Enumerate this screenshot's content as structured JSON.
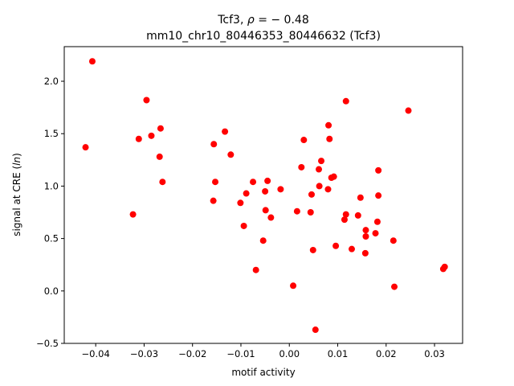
{
  "chart_data": {
    "type": "scatter",
    "title_line1": "Tcf3, ρ = − 0.48",
    "title_line2": "mm10_chr10_80446353_80446632 (Tcf3)",
    "xlabel": "motif activity",
    "ylabel": "signal at CRE (ln)",
    "xlim": [
      -0.0465,
      0.0358
    ],
    "ylim": [
      -0.5,
      2.33
    ],
    "xticks": [
      -0.04,
      -0.03,
      -0.02,
      -0.01,
      0.0,
      0.01,
      0.02,
      0.03
    ],
    "xtick_labels": [
      "−0.04",
      "−0.03",
      "−0.02",
      "−0.01",
      "0.00",
      "0.01",
      "0.02",
      "0.03"
    ],
    "yticks": [
      -0.5,
      0.0,
      0.5,
      1.0,
      1.5,
      2.0
    ],
    "ytick_labels": [
      "−0.5",
      "0.0",
      "0.5",
      "1.0",
      "1.5",
      "2.0"
    ],
    "grid": false,
    "marker_color": "#ff0000",
    "points": [
      [
        -0.0421,
        1.37
      ],
      [
        -0.0407,
        2.19
      ],
      [
        -0.0323,
        0.73
      ],
      [
        -0.0311,
        1.45
      ],
      [
        -0.0295,
        1.82
      ],
      [
        -0.0285,
        1.48
      ],
      [
        -0.0268,
        1.28
      ],
      [
        -0.0266,
        1.55
      ],
      [
        -0.0262,
        1.04
      ],
      [
        -0.0157,
        0.86
      ],
      [
        -0.0156,
        1.4
      ],
      [
        -0.0153,
        1.04
      ],
      [
        -0.0133,
        1.52
      ],
      [
        -0.0121,
        1.3
      ],
      [
        -0.0101,
        0.84
      ],
      [
        -0.0094,
        0.62
      ],
      [
        -0.0089,
        0.93
      ],
      [
        -0.0075,
        1.04
      ],
      [
        -0.0069,
        0.2
      ],
      [
        -0.0054,
        0.48
      ],
      [
        -0.005,
        0.95
      ],
      [
        -0.0049,
        0.77
      ],
      [
        -0.0045,
        1.05
      ],
      [
        -0.0038,
        0.7
      ],
      [
        -0.0018,
        0.97
      ],
      [
        0.0008,
        0.05
      ],
      [
        0.0016,
        0.76
      ],
      [
        0.0025,
        1.18
      ],
      [
        0.003,
        1.44
      ],
      [
        0.0044,
        0.75
      ],
      [
        0.0046,
        0.92
      ],
      [
        0.0049,
        0.39
      ],
      [
        0.0054,
        -0.37
      ],
      [
        0.0061,
        1.16
      ],
      [
        0.0062,
        1.0
      ],
      [
        0.0066,
        1.24
      ],
      [
        0.008,
        0.97
      ],
      [
        0.0081,
        1.58
      ],
      [
        0.0083,
        1.45
      ],
      [
        0.0087,
        1.08
      ],
      [
        0.0092,
        1.09
      ],
      [
        0.0096,
        0.43
      ],
      [
        0.0114,
        0.68
      ],
      [
        0.0117,
        1.81
      ],
      [
        0.0117,
        0.73
      ],
      [
        0.0129,
        0.4
      ],
      [
        0.0142,
        0.72
      ],
      [
        0.0147,
        0.89
      ],
      [
        0.0157,
        0.36
      ],
      [
        0.0158,
        0.58
      ],
      [
        0.0158,
        0.52
      ],
      [
        0.0178,
        0.55
      ],
      [
        0.0182,
        0.66
      ],
      [
        0.0184,
        1.15
      ],
      [
        0.0184,
        0.91
      ],
      [
        0.0215,
        0.48
      ],
      [
        0.0217,
        0.04
      ],
      [
        0.0246,
        1.72
      ],
      [
        0.0318,
        0.21
      ],
      [
        0.0321,
        0.23
      ]
    ]
  }
}
